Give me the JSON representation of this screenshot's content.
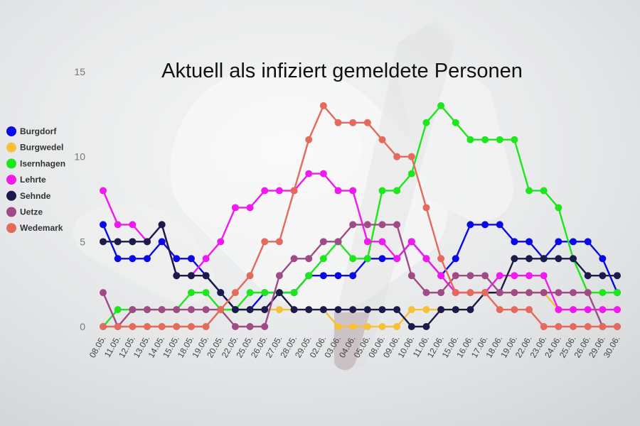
{
  "chart_data": {
    "type": "line",
    "title": "Aktuell als infiziert gemeldete Personen",
    "xlabel": "",
    "ylabel": "",
    "ylim": [
      0,
      15
    ],
    "yticks": [
      "0",
      "5",
      "10",
      "15"
    ],
    "grid": false,
    "legend_position": "left",
    "x": [
      "08.05.",
      "11.05.",
      "12.05.",
      "13.05.",
      "14.05.",
      "15.05.",
      "18.05.",
      "19.05.",
      "20.05.",
      "22.05.",
      "25.05.",
      "26.05.",
      "27.05.",
      "28.05.",
      "29.05.",
      "02.06.",
      "03.06.",
      "04.06.",
      "05.06.",
      "08.06.",
      "09.06.",
      "10.06.",
      "11.06.",
      "12.06.",
      "15.06.",
      "16.06.",
      "17.06.",
      "18.06.",
      "19.06.",
      "22.06.",
      "23.06.",
      "24.06.",
      "25.06.",
      "26.06.",
      "29.06.",
      "30.06."
    ],
    "series": [
      {
        "name": "Burgdorf",
        "color": "#0a0ae6",
        "values": [
          6,
          4,
          4,
          4,
          5,
          4,
          4,
          3,
          2,
          1,
          1,
          2,
          2,
          2,
          3,
          3,
          3,
          3,
          4,
          4,
          4,
          5,
          4,
          3,
          4,
          6,
          6,
          6,
          5,
          5,
          4,
          5,
          5,
          5,
          4,
          2
        ]
      },
      {
        "name": "Burgwedel",
        "color": "#f7c137",
        "values": [
          0,
          0,
          0,
          0,
          0,
          0,
          0,
          0,
          1,
          1,
          1,
          1,
          1,
          1,
          1,
          1,
          0,
          0,
          0,
          0,
          0,
          1,
          1,
          1,
          1,
          1,
          2,
          2,
          2,
          2,
          2,
          1,
          1,
          1,
          1,
          1
        ]
      },
      {
        "name": "Isernhagen",
        "color": "#1de61d",
        "values": [
          0,
          1,
          1,
          1,
          1,
          1,
          2,
          2,
          1,
          1,
          2,
          2,
          2,
          2,
          3,
          4,
          5,
          4,
          4,
          8,
          8,
          9,
          12,
          13,
          12,
          11,
          11,
          11,
          11,
          8,
          8,
          7,
          4,
          2,
          2,
          2
        ]
      },
      {
        "name": "Lehrte",
        "color": "#f019f0",
        "values": [
          8,
          6,
          6,
          5,
          6,
          3,
          3,
          4,
          5,
          7,
          7,
          8,
          8,
          8,
          9,
          9,
          8,
          8,
          5,
          5,
          4,
          5,
          4,
          3,
          2,
          2,
          2,
          3,
          3,
          3,
          3,
          1,
          1,
          1,
          1,
          1
        ]
      },
      {
        "name": "Sehnde",
        "color": "#1b1a4b",
        "values": [
          5,
          5,
          5,
          5,
          6,
          3,
          3,
          3,
          2,
          1,
          1,
          1,
          2,
          1,
          1,
          1,
          1,
          1,
          1,
          1,
          1,
          0,
          0,
          1,
          1,
          1,
          2,
          2,
          4,
          4,
          4,
          4,
          4,
          3,
          3,
          3
        ]
      },
      {
        "name": "Uetze",
        "color": "#a04a86",
        "values": [
          2,
          0,
          1,
          1,
          1,
          1,
          1,
          1,
          1,
          0,
          0,
          0,
          3,
          4,
          4,
          5,
          5,
          6,
          6,
          6,
          6,
          3,
          2,
          2,
          3,
          3,
          3,
          2,
          2,
          2,
          2,
          2,
          2,
          2,
          0,
          0
        ]
      },
      {
        "name": "Wedemark",
        "color": "#e36a5c",
        "values": [
          0,
          0,
          0,
          0,
          0,
          0,
          0,
          0,
          1,
          2,
          3,
          5,
          5,
          8,
          11,
          13,
          12,
          12,
          12,
          11,
          10,
          10,
          7,
          4,
          2,
          2,
          2,
          1,
          1,
          1,
          0,
          0,
          0,
          0,
          0,
          0
        ]
      }
    ]
  }
}
